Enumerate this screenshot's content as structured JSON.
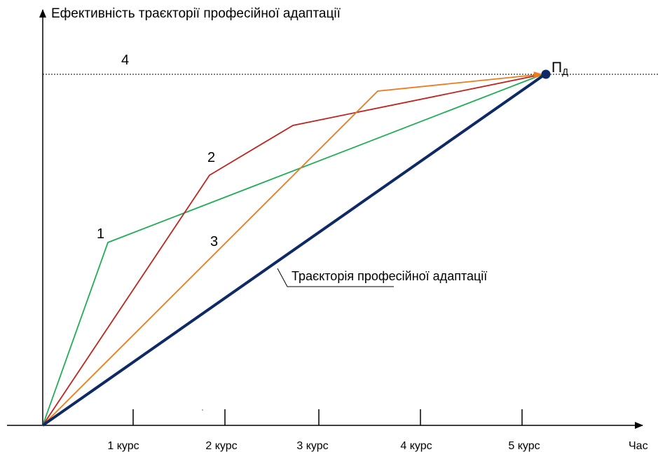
{
  "diagram": {
    "y_axis_label": "Ефективність траєкторії професійної адаптації",
    "x_axis_label": "Час",
    "x_ticks": [
      "1 курс",
      "2 курс",
      "3 курс",
      "4 курс",
      "5 курс"
    ],
    "target_point": {
      "symbol": "П",
      "subscript": "Д"
    },
    "level_label": "4",
    "trajectory_labels": {
      "t1": "1",
      "t2": "2",
      "t3": "3"
    },
    "main_trajectory_label": "Траєкторія професійної адаптації",
    "colors": {
      "main": "#0d2a66",
      "trajectory_1": "#1fae55",
      "trajectory_2": "#c0241d",
      "trajectory_3": "#ee7a1b",
      "target_point": "#0d2a66",
      "axes": "#000000"
    }
  }
}
